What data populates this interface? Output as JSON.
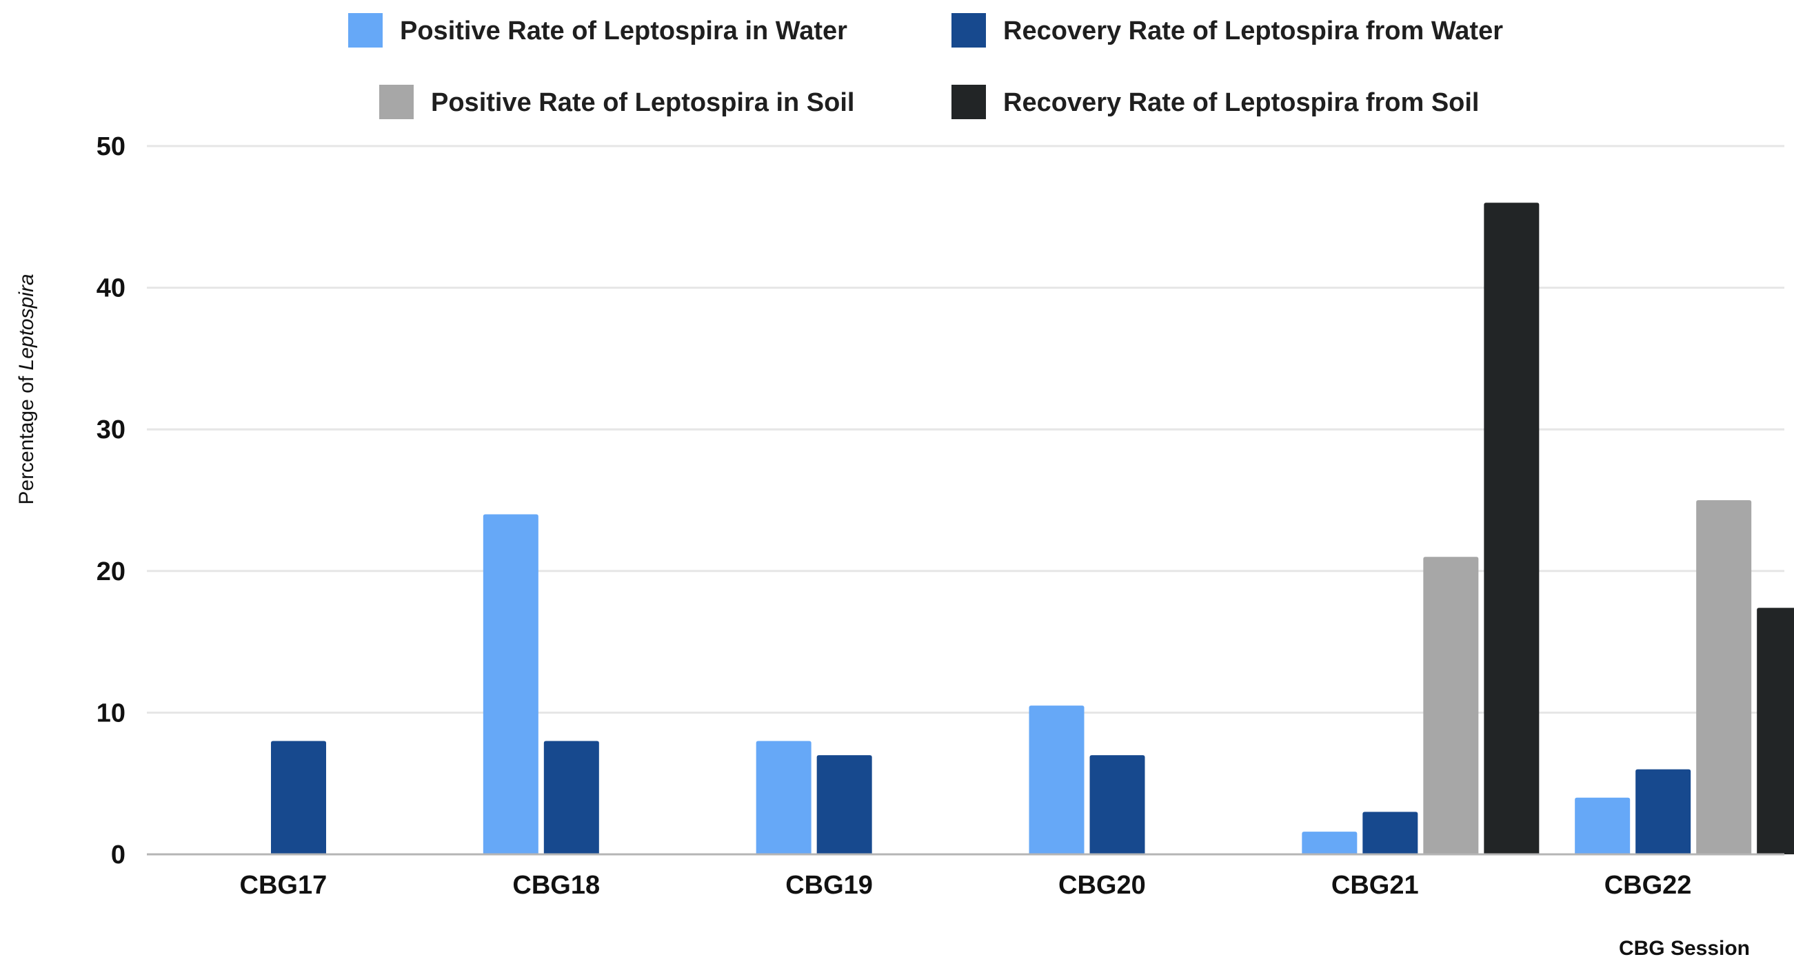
{
  "chart_data": {
    "type": "bar",
    "title": "",
    "categories": [
      "CBG17",
      "CBG18",
      "CBG19",
      "CBG20",
      "CBG21",
      "CBG22"
    ],
    "series": [
      {
        "name": "Positive Rate of Leptospira in Water",
        "color": "#66a8f7",
        "values": [
          0,
          24,
          8,
          10.5,
          1.6,
          4
        ]
      },
      {
        "name": "Recovery Rate of Leptospira from Water",
        "color": "#17498e",
        "values": [
          8,
          8,
          7,
          7,
          3,
          6
        ]
      },
      {
        "name": "Positive Rate of Leptospira in Soil",
        "color": "#a7a7a7",
        "values": [
          0,
          0,
          0,
          0,
          21,
          25
        ]
      },
      {
        "name": "Recovery Rate of Leptospira from Soil",
        "color": "#222526",
        "values": [
          0,
          0,
          0,
          0,
          46,
          17.4
        ]
      }
    ],
    "yticks": [
      "0",
      "10",
      "20",
      "30",
      "40",
      "50"
    ],
    "ylim": [
      0,
      50
    ],
    "ylabel_prefix": "Percentage of ",
    "ylabel_italic": "Leptospira",
    "xlabel": "CBG Session",
    "grid": true,
    "legend_position": "top"
  }
}
